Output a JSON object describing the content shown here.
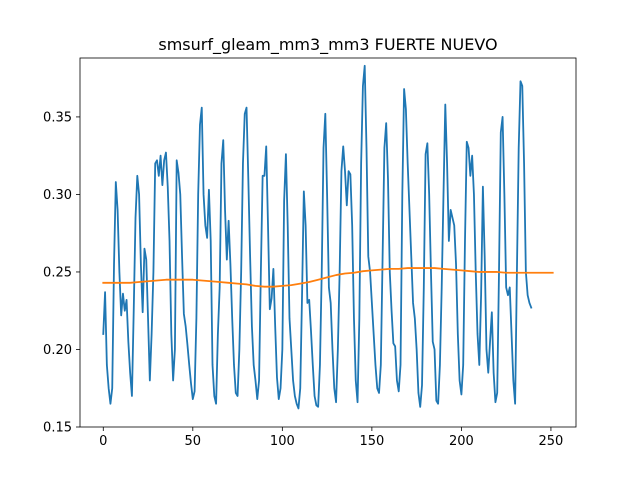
{
  "chart_data": {
    "type": "line",
    "title": "smsurf_gleam_mm3_mm3 FUERTE NUEVO",
    "xlabel": "",
    "ylabel": "",
    "xlim": [
      -13,
      264
    ],
    "ylim": [
      0.15,
      0.388
    ],
    "x_ticks": [
      0,
      50,
      100,
      150,
      200,
      250
    ],
    "y_ticks": [
      0.15,
      0.2,
      0.25,
      0.3,
      0.35
    ],
    "x_tick_labels": [
      "0",
      "50",
      "100",
      "150",
      "200",
      "250"
    ],
    "y_tick_labels": [
      "0.15",
      "0.20",
      "0.25",
      "0.30",
      "0.35"
    ],
    "grid": false,
    "legend": "none",
    "colors": {
      "series1": "#1f77b4",
      "series2": "#ff7f0e",
      "axes": "#000000"
    },
    "series": [
      {
        "points": [
          [
            0,
            0.21
          ],
          [
            1,
            0.237
          ],
          [
            2,
            0.19
          ],
          [
            3,
            0.175
          ],
          [
            4,
            0.165
          ],
          [
            5,
            0.175
          ],
          [
            6,
            0.255
          ],
          [
            7,
            0.308
          ],
          [
            8,
            0.29
          ],
          [
            9,
            0.25
          ],
          [
            10,
            0.222
          ],
          [
            11,
            0.236
          ],
          [
            12,
            0.225
          ],
          [
            13,
            0.232
          ],
          [
            14,
            0.205
          ],
          [
            15,
            0.185
          ],
          [
            16,
            0.17
          ],
          [
            17,
            0.225
          ],
          [
            18,
            0.285
          ],
          [
            19,
            0.312
          ],
          [
            20,
            0.3
          ],
          [
            21,
            0.255
          ],
          [
            22,
            0.224
          ],
          [
            23,
            0.265
          ],
          [
            24,
            0.258
          ],
          [
            25,
            0.22
          ],
          [
            26,
            0.18
          ],
          [
            27,
            0.21
          ],
          [
            28,
            0.25
          ],
          [
            29,
            0.32
          ],
          [
            30,
            0.322
          ],
          [
            31,
            0.312
          ],
          [
            32,
            0.325
          ],
          [
            33,
            0.306
          ],
          [
            34,
            0.322
          ],
          [
            35,
            0.327
          ],
          [
            36,
            0.305
          ],
          [
            37,
            0.27
          ],
          [
            38,
            0.21
          ],
          [
            39,
            0.18
          ],
          [
            40,
            0.2
          ],
          [
            41,
            0.322
          ],
          [
            42,
            0.314
          ],
          [
            43,
            0.3
          ],
          [
            44,
            0.26
          ],
          [
            45,
            0.223
          ],
          [
            46,
            0.215
          ],
          [
            47,
            0.203
          ],
          [
            48,
            0.19
          ],
          [
            49,
            0.178
          ],
          [
            50,
            0.168
          ],
          [
            51,
            0.173
          ],
          [
            52,
            0.22
          ],
          [
            53,
            0.3
          ],
          [
            54,
            0.345
          ],
          [
            55,
            0.356
          ],
          [
            56,
            0.3
          ],
          [
            57,
            0.28
          ],
          [
            58,
            0.272
          ],
          [
            59,
            0.303
          ],
          [
            60,
            0.27
          ],
          [
            61,
            0.19
          ],
          [
            62,
            0.17
          ],
          [
            63,
            0.165
          ],
          [
            64,
            0.21
          ],
          [
            65,
            0.24
          ],
          [
            66,
            0.32
          ],
          [
            67,
            0.335
          ],
          [
            68,
            0.29
          ],
          [
            69,
            0.258
          ],
          [
            70,
            0.283
          ],
          [
            71,
            0.255
          ],
          [
            72,
            0.22
          ],
          [
            73,
            0.19
          ],
          [
            74,
            0.172
          ],
          [
            75,
            0.17
          ],
          [
            76,
            0.2
          ],
          [
            77,
            0.25
          ],
          [
            78,
            0.32
          ],
          [
            79,
            0.352
          ],
          [
            80,
            0.356
          ],
          [
            81,
            0.31
          ],
          [
            82,
            0.26
          ],
          [
            83,
            0.215
          ],
          [
            84,
            0.19
          ],
          [
            85,
            0.18
          ],
          [
            86,
            0.168
          ],
          [
            87,
            0.18
          ],
          [
            88,
            0.25
          ],
          [
            89,
            0.312
          ],
          [
            90,
            0.312
          ],
          [
            91,
            0.331
          ],
          [
            92,
            0.28
          ],
          [
            93,
            0.226
          ],
          [
            94,
            0.233
          ],
          [
            95,
            0.252
          ],
          [
            96,
            0.215
          ],
          [
            97,
            0.182
          ],
          [
            98,
            0.168
          ],
          [
            99,
            0.175
          ],
          [
            100,
            0.2
          ],
          [
            101,
            0.296
          ],
          [
            102,
            0.326
          ],
          [
            103,
            0.28
          ],
          [
            104,
            0.22
          ],
          [
            105,
            0.2
          ],
          [
            106,
            0.18
          ],
          [
            107,
            0.17
          ],
          [
            108,
            0.165
          ],
          [
            109,
            0.162
          ],
          [
            110,
            0.175
          ],
          [
            111,
            0.235
          ],
          [
            112,
            0.302
          ],
          [
            113,
            0.28
          ],
          [
            114,
            0.23
          ],
          [
            115,
            0.232
          ],
          [
            116,
            0.212
          ],
          [
            117,
            0.19
          ],
          [
            118,
            0.17
          ],
          [
            119,
            0.164
          ],
          [
            120,
            0.163
          ],
          [
            121,
            0.19
          ],
          [
            122,
            0.25
          ],
          [
            123,
            0.33
          ],
          [
            124,
            0.352
          ],
          [
            125,
            0.3
          ],
          [
            126,
            0.24
          ],
          [
            127,
            0.23
          ],
          [
            128,
            0.2
          ],
          [
            129,
            0.175
          ],
          [
            130,
            0.166
          ],
          [
            131,
            0.2
          ],
          [
            132,
            0.25
          ],
          [
            133,
            0.315
          ],
          [
            134,
            0.331
          ],
          [
            135,
            0.315
          ],
          [
            136,
            0.293
          ],
          [
            137,
            0.315
          ],
          [
            138,
            0.313
          ],
          [
            139,
            0.28
          ],
          [
            140,
            0.22
          ],
          [
            141,
            0.18
          ],
          [
            142,
            0.166
          ],
          [
            143,
            0.22
          ],
          [
            144,
            0.32
          ],
          [
            145,
            0.37
          ],
          [
            146,
            0.383
          ],
          [
            147,
            0.33
          ],
          [
            148,
            0.26
          ],
          [
            149,
            0.25
          ],
          [
            150,
            0.23
          ],
          [
            151,
            0.21
          ],
          [
            152,
            0.19
          ],
          [
            153,
            0.175
          ],
          [
            154,
            0.172
          ],
          [
            155,
            0.19
          ],
          [
            156,
            0.26
          ],
          [
            157,
            0.33
          ],
          [
            158,
            0.346
          ],
          [
            159,
            0.31
          ],
          [
            160,
            0.25
          ],
          [
            161,
            0.225
          ],
          [
            162,
            0.204
          ],
          [
            163,
            0.202
          ],
          [
            164,
            0.18
          ],
          [
            165,
            0.173
          ],
          [
            166,
            0.19
          ],
          [
            167,
            0.3
          ],
          [
            168,
            0.368
          ],
          [
            169,
            0.355
          ],
          [
            170,
            0.32
          ],
          [
            171,
            0.29
          ],
          [
            172,
            0.26
          ],
          [
            173,
            0.23
          ],
          [
            174,
            0.22
          ],
          [
            175,
            0.2
          ],
          [
            176,
            0.172
          ],
          [
            177,
            0.163
          ],
          [
            178,
            0.177
          ],
          [
            179,
            0.24
          ],
          [
            180,
            0.326
          ],
          [
            181,
            0.333
          ],
          [
            182,
            0.3
          ],
          [
            183,
            0.25
          ],
          [
            184,
            0.205
          ],
          [
            185,
            0.2
          ],
          [
            186,
            0.167
          ],
          [
            187,
            0.165
          ],
          [
            188,
            0.19
          ],
          [
            189,
            0.24
          ],
          [
            190,
            0.3
          ],
          [
            191,
            0.358
          ],
          [
            192,
            0.32
          ],
          [
            193,
            0.27
          ],
          [
            194,
            0.29
          ],
          [
            195,
            0.285
          ],
          [
            196,
            0.28
          ],
          [
            197,
            0.255
          ],
          [
            198,
            0.21
          ],
          [
            199,
            0.18
          ],
          [
            200,
            0.171
          ],
          [
            201,
            0.19
          ],
          [
            202,
            0.27
          ],
          [
            203,
            0.334
          ],
          [
            204,
            0.33
          ],
          [
            205,
            0.312
          ],
          [
            206,
            0.325
          ],
          [
            207,
            0.3
          ],
          [
            208,
            0.25
          ],
          [
            209,
            0.21
          ],
          [
            210,
            0.19
          ],
          [
            211,
            0.235
          ],
          [
            212,
            0.305
          ],
          [
            213,
            0.26
          ],
          [
            214,
            0.2
          ],
          [
            215,
            0.185
          ],
          [
            216,
            0.205
          ],
          [
            217,
            0.224
          ],
          [
            218,
            0.185
          ],
          [
            219,
            0.166
          ],
          [
            220,
            0.172
          ],
          [
            221,
            0.25
          ],
          [
            222,
            0.34
          ],
          [
            223,
            0.35
          ],
          [
            224,
            0.3
          ],
          [
            225,
            0.24
          ],
          [
            226,
            0.235
          ],
          [
            227,
            0.24
          ],
          [
            228,
            0.21
          ],
          [
            229,
            0.18
          ],
          [
            230,
            0.165
          ],
          [
            231,
            0.25
          ],
          [
            232,
            0.33
          ],
          [
            233,
            0.373
          ],
          [
            234,
            0.37
          ],
          [
            235,
            0.32
          ],
          [
            236,
            0.25
          ],
          [
            237,
            0.235
          ],
          [
            238,
            0.23
          ],
          [
            239,
            0.227
          ]
        ]
      },
      {
        "points": [
          [
            0,
            0.243
          ],
          [
            5,
            0.243
          ],
          [
            10,
            0.243
          ],
          [
            15,
            0.243
          ],
          [
            20,
            0.2435
          ],
          [
            25,
            0.244
          ],
          [
            30,
            0.2445
          ],
          [
            35,
            0.245
          ],
          [
            40,
            0.245
          ],
          [
            45,
            0.245
          ],
          [
            50,
            0.245
          ],
          [
            55,
            0.2445
          ],
          [
            60,
            0.244
          ],
          [
            65,
            0.2435
          ],
          [
            70,
            0.243
          ],
          [
            75,
            0.2425
          ],
          [
            80,
            0.242
          ],
          [
            85,
            0.241
          ],
          [
            90,
            0.2405
          ],
          [
            95,
            0.2405
          ],
          [
            100,
            0.241
          ],
          [
            105,
            0.2415
          ],
          [
            110,
            0.2425
          ],
          [
            115,
            0.2435
          ],
          [
            120,
            0.245
          ],
          [
            125,
            0.2465
          ],
          [
            130,
            0.248
          ],
          [
            135,
            0.249
          ],
          [
            140,
            0.2495
          ],
          [
            145,
            0.2505
          ],
          [
            150,
            0.251
          ],
          [
            155,
            0.2515
          ],
          [
            160,
            0.252
          ],
          [
            165,
            0.252
          ],
          [
            170,
            0.2525
          ],
          [
            175,
            0.2525
          ],
          [
            180,
            0.2525
          ],
          [
            185,
            0.2525
          ],
          [
            190,
            0.252
          ],
          [
            195,
            0.2515
          ],
          [
            200,
            0.251
          ],
          [
            205,
            0.2505
          ],
          [
            210,
            0.25
          ],
          [
            215,
            0.25
          ],
          [
            220,
            0.25
          ],
          [
            225,
            0.2495
          ],
          [
            230,
            0.2495
          ],
          [
            235,
            0.2495
          ],
          [
            240,
            0.2495
          ],
          [
            245,
            0.2495
          ],
          [
            251,
            0.2495
          ]
        ]
      }
    ]
  }
}
